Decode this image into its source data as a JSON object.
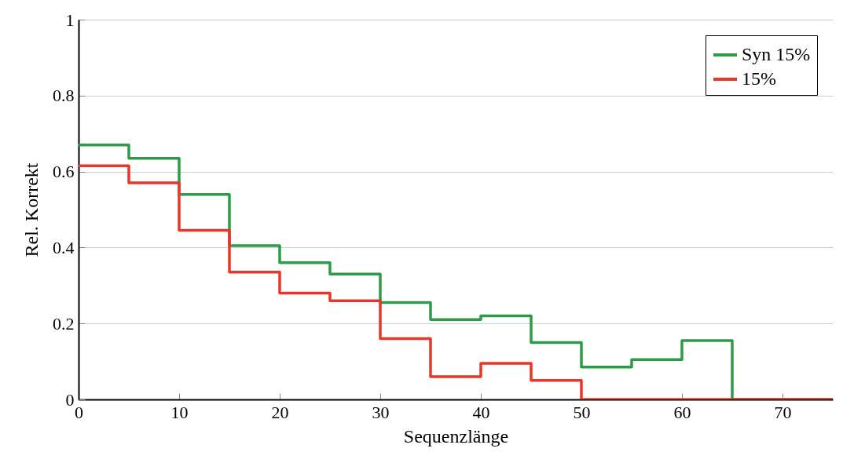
{
  "chart_data": {
    "type": "step",
    "xlabel": "Sequenzlänge",
    "ylabel": "Rel. Korrekt",
    "x": [
      0,
      5,
      10,
      15,
      20,
      25,
      30,
      35,
      40,
      45,
      50,
      55,
      60,
      65,
      70,
      75
    ],
    "series": [
      {
        "name": "Syn 15%",
        "color": "#2e9a4a",
        "values": [
          0.67,
          0.635,
          0.54,
          0.405,
          0.36,
          0.33,
          0.255,
          0.21,
          0.22,
          0.15,
          0.085,
          0.105,
          0.155,
          0,
          0,
          0
        ]
      },
      {
        "name": "15%",
        "color": "#e8362a",
        "values": [
          0.615,
          0.57,
          0.445,
          0.335,
          0.28,
          0.26,
          0.16,
          0.06,
          0.095,
          0.05,
          0,
          0,
          0,
          0,
          0,
          0
        ]
      }
    ],
    "xlim": [
      0,
      75
    ],
    "xticks": [
      0,
      10,
      20,
      30,
      40,
      50,
      60,
      70
    ],
    "ylim": [
      0,
      1
    ],
    "yticks": [
      0,
      0.2,
      0.4,
      0.6,
      0.8,
      1
    ],
    "grid": "y",
    "legend": "top right"
  }
}
